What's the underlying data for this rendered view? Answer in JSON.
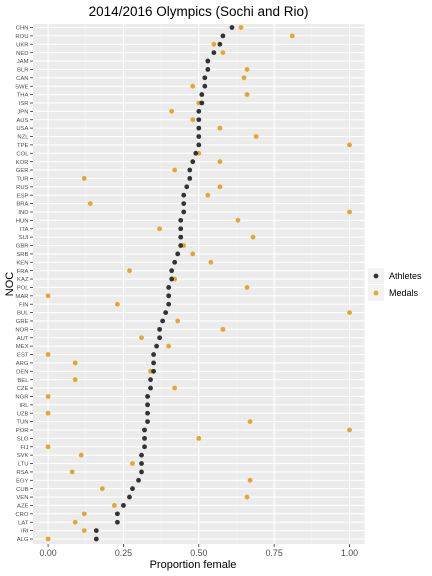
{
  "chart_data": {
    "type": "scatter",
    "title": "2014/2016 Olympics (Sochi and Rio)",
    "xlabel": "Proportion female",
    "ylabel": "NOC",
    "xlim": [
      -0.05,
      1.05
    ],
    "xticks": [
      0.0,
      0.25,
      0.5,
      0.75,
      1.0
    ],
    "xtick_labels": [
      "0.00",
      "0.25",
      "0.50",
      "0.75",
      "1.00"
    ],
    "grid": true,
    "legend": "right",
    "categories": [
      "CHN",
      "ROU",
      "UKR",
      "NED",
      "JAM",
      "BLR",
      "CAN",
      "SWE",
      "THA",
      "ISR",
      "JPN",
      "AUS",
      "USA",
      "NZL",
      "TPE",
      "COL",
      "KOR",
      "GER",
      "TUR",
      "RUS",
      "ESP",
      "BRA",
      "IND",
      "HUN",
      "ITA",
      "SUI",
      "GBR",
      "SRB",
      "KEN",
      "FRA",
      "KAZ",
      "POL",
      "MAR",
      "FIN",
      "BUL",
      "GRE",
      "NOR",
      "AUT",
      "MEX",
      "EST",
      "ARG",
      "DEN",
      "BEL",
      "CZE",
      "NGR",
      "IRL",
      "UZB",
      "TUN",
      "POR",
      "SLO",
      "FIJ",
      "SVK",
      "LTU",
      "RSA",
      "EGY",
      "CUB",
      "VEN",
      "AZE",
      "CRO",
      "LAT",
      "IRI",
      "ALG"
    ],
    "series": [
      {
        "name": "Athletes",
        "color": "#333333",
        "values": [
          0.61,
          0.58,
          0.57,
          0.55,
          0.53,
          0.53,
          0.52,
          0.52,
          0.51,
          0.51,
          0.5,
          0.5,
          0.5,
          0.5,
          0.5,
          0.49,
          0.48,
          0.47,
          0.47,
          0.46,
          0.45,
          0.45,
          0.45,
          0.44,
          0.44,
          0.44,
          0.44,
          0.43,
          0.42,
          0.41,
          0.41,
          0.4,
          0.4,
          0.4,
          0.39,
          0.38,
          0.37,
          0.37,
          0.36,
          0.35,
          0.35,
          0.35,
          0.34,
          0.34,
          0.33,
          0.33,
          0.33,
          0.33,
          0.32,
          0.32,
          0.32,
          0.31,
          0.31,
          0.31,
          0.3,
          0.28,
          0.27,
          0.25,
          0.23,
          0.23,
          0.16,
          0.16
        ]
      },
      {
        "name": "Medals",
        "color": "#E0A830",
        "values": [
          0.64,
          0.81,
          0.55,
          0.58,
          0.53,
          0.66,
          0.65,
          0.48,
          0.66,
          0.5,
          0.41,
          0.48,
          0.57,
          0.69,
          1.0,
          0.5,
          0.57,
          0.42,
          0.12,
          0.57,
          0.53,
          0.14,
          1.0,
          0.63,
          0.37,
          0.68,
          0.45,
          0.48,
          0.54,
          0.27,
          0.42,
          0.66,
          0.0,
          0.23,
          1.0,
          0.43,
          0.58,
          0.31,
          0.4,
          0.0,
          0.09,
          0.34,
          0.09,
          0.42,
          0.0,
          0.33,
          0.0,
          0.67,
          1.0,
          0.5,
          0.0,
          0.11,
          0.28,
          0.08,
          0.67,
          0.18,
          0.66,
          0.22,
          0.12,
          0.09,
          0.12,
          0.0
        ]
      }
    ]
  }
}
